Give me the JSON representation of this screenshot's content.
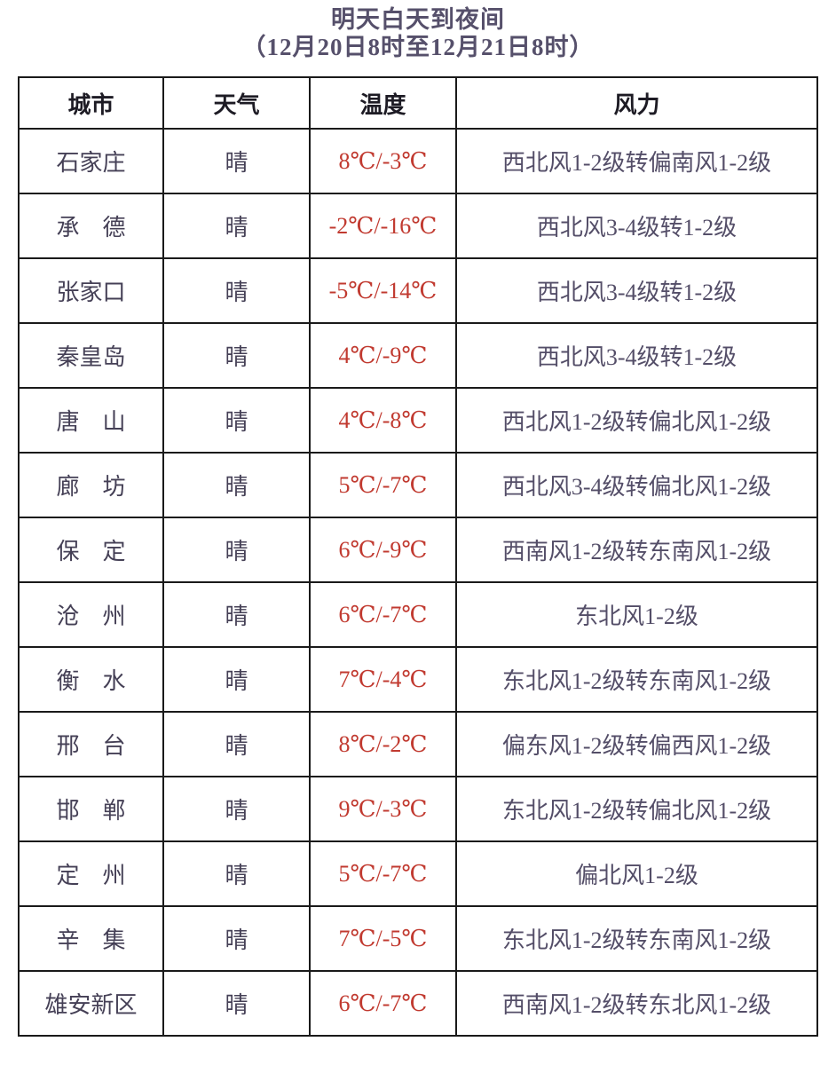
{
  "title": {
    "line1": "明天白天到夜间",
    "line2": "（12月20日8时至12月21日8时）"
  },
  "colors": {
    "background": "#ffffff",
    "title": "#56506b",
    "header_text": "#1d1b24",
    "city_text": "#454056",
    "temp_text": "#c13a30",
    "wind_text": "#544e68",
    "border": "#1a1a1a"
  },
  "table": {
    "headers": [
      "城市",
      "天气",
      "温度",
      "风力"
    ],
    "rows": [
      {
        "city": "石家庄",
        "weather": "晴",
        "temp": "8℃/-3℃",
        "wind": "西北风1-2级转偏南风1-2级"
      },
      {
        "city": "承　德",
        "weather": "晴",
        "temp": "-2℃/-16℃",
        "wind": "西北风3-4级转1-2级"
      },
      {
        "city": "张家口",
        "weather": "晴",
        "temp": "-5℃/-14℃",
        "wind": "西北风3-4级转1-2级"
      },
      {
        "city": "秦皇岛",
        "weather": "晴",
        "temp": "4℃/-9℃",
        "wind": "西北风3-4级转1-2级"
      },
      {
        "city": "唐　山",
        "weather": "晴",
        "temp": "4℃/-8℃",
        "wind": "西北风1-2级转偏北风1-2级"
      },
      {
        "city": "廊　坊",
        "weather": "晴",
        "temp": "5℃/-7℃",
        "wind": "西北风3-4级转偏北风1-2级"
      },
      {
        "city": "保　定",
        "weather": "晴",
        "temp": "6℃/-9℃",
        "wind": "西南风1-2级转东南风1-2级"
      },
      {
        "city": "沧　州",
        "weather": "晴",
        "temp": "6℃/-7℃",
        "wind": "东北风1-2级"
      },
      {
        "city": "衡　水",
        "weather": "晴",
        "temp": "7℃/-4℃",
        "wind": "东北风1-2级转东南风1-2级"
      },
      {
        "city": "邢　台",
        "weather": "晴",
        "temp": "8℃/-2℃",
        "wind": "偏东风1-2级转偏西风1-2级"
      },
      {
        "city": "邯　郸",
        "weather": "晴",
        "temp": "9℃/-3℃",
        "wind": "东北风1-2级转偏北风1-2级"
      },
      {
        "city": "定　州",
        "weather": "晴",
        "temp": "5℃/-7℃",
        "wind": "偏北风1-2级"
      },
      {
        "city": "辛　集",
        "weather": "晴",
        "temp": "7℃/-5℃",
        "wind": "东北风1-2级转东南风1-2级"
      },
      {
        "city": "雄安新区",
        "weather": "晴",
        "temp": "6℃/-7℃",
        "wind": "西南风1-2级转东北风1-2级"
      }
    ]
  }
}
